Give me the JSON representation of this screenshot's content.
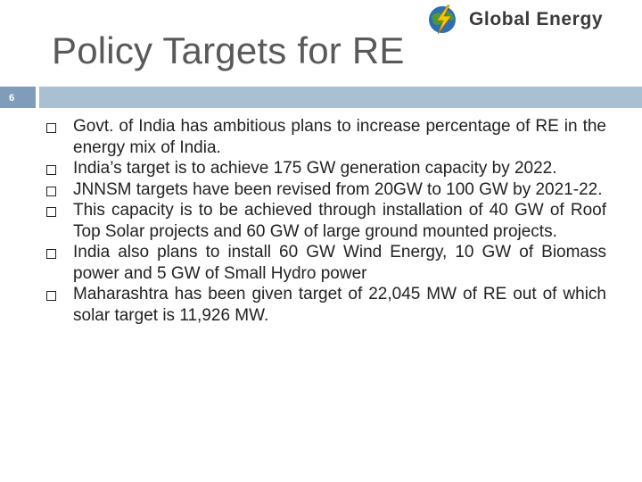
{
  "slide": {
    "title": "Policy Targets for RE",
    "number": "6"
  },
  "logo": {
    "text": "Global Energy",
    "icon": "globe-lightning-icon",
    "colors": {
      "globe_blue": "#2f6db5",
      "globe_green": "#4a9a3a",
      "bolt_yellow": "#f5c800"
    }
  },
  "colors": {
    "title": "#595959",
    "number_box": "#7f9dba",
    "header_band": "#a9bfd2",
    "body_text": "#222222"
  },
  "bullets": [
    "Govt. of India has ambitious plans to increase percentage of RE in the energy mix of India.",
    "India’s target is to achieve 175 GW generation capacity by 2022.",
    "JNNSM targets have been revised from 20GW to 100 GW by 2021-22.",
    "This capacity is to be achieved through installation of 40 GW of Roof Top Solar projects and 60 GW of large ground mounted projects.",
    "India also plans to install 60 GW Wind Energy, 10 GW of Biomass power and 5 GW of Small Hydro power",
    "Maharashtra has been given target of 22,045 MW of RE out of which solar target is 11,926 MW."
  ],
  "bullet_icon": "hollow-square-bullet-icon"
}
